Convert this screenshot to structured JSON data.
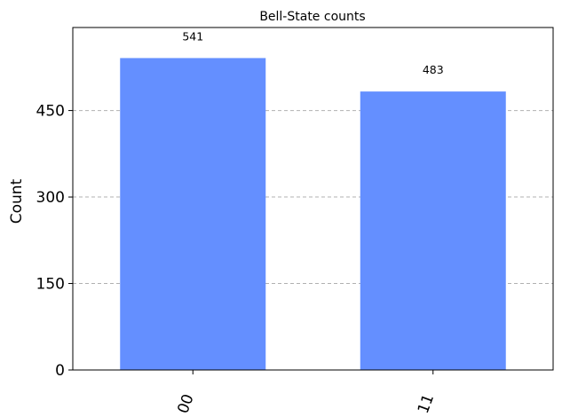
{
  "chart_data": {
    "type": "bar",
    "title": "Bell-State counts",
    "xlabel": "",
    "ylabel": "Count",
    "categories": [
      "00",
      "11"
    ],
    "values": [
      541,
      483
    ],
    "data_labels": [
      "541",
      "483"
    ],
    "ylim": [
      0,
      594
    ],
    "yticks": [
      0,
      150,
      300,
      450
    ],
    "ytick_labels": [
      "0",
      "150",
      "300",
      "450"
    ],
    "grid": "horizontal dashed",
    "colors": {
      "bar": "#648fff",
      "grid": "#b0b0b0",
      "axis": "#000000"
    }
  }
}
